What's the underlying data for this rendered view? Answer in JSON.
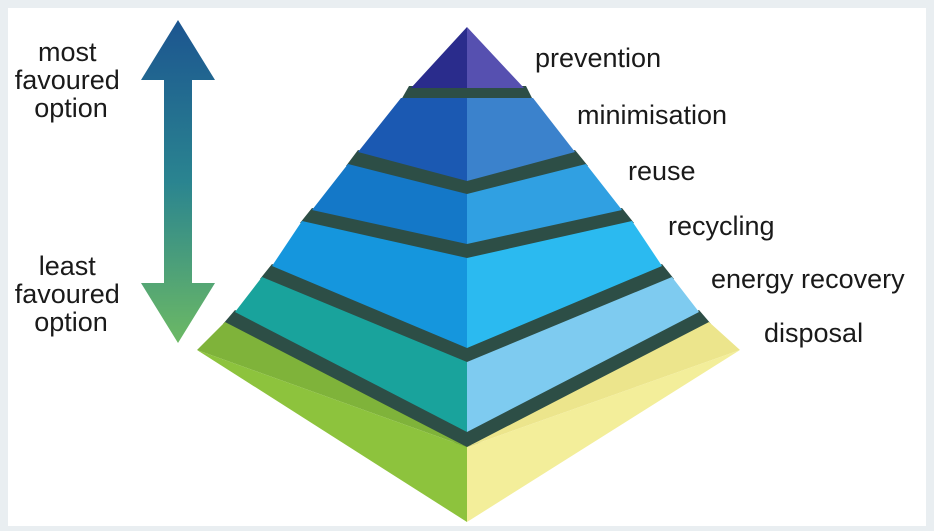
{
  "diagram": {
    "top_label": [
      "most",
      "favoured",
      "option"
    ],
    "bottom_label": [
      "least",
      "favoured",
      "option"
    ],
    "levels": [
      {
        "label": "prevention",
        "left_color": "#2a2c8c",
        "right_color": "#5650b0"
      },
      {
        "label": "minimisation",
        "left_color": "#1b59b2",
        "right_color": "#3b82cc"
      },
      {
        "label": "reuse",
        "left_color": "#1478c8",
        "right_color": "#30a0e2"
      },
      {
        "label": "recycling",
        "left_color": "#1596dd",
        "right_color": "#2bbaf0"
      },
      {
        "label": "energy recovery",
        "left_color": "#19a39c",
        "right_color": "#7ecbf0"
      },
      {
        "label": "disposal",
        "left_color": "#8dc33d",
        "right_color": "#f3ee9a"
      }
    ],
    "separator_color": "#2d4e46",
    "arrow_gradient": [
      "#1c5590",
      "#2a8490",
      "#6cb964"
    ]
  }
}
